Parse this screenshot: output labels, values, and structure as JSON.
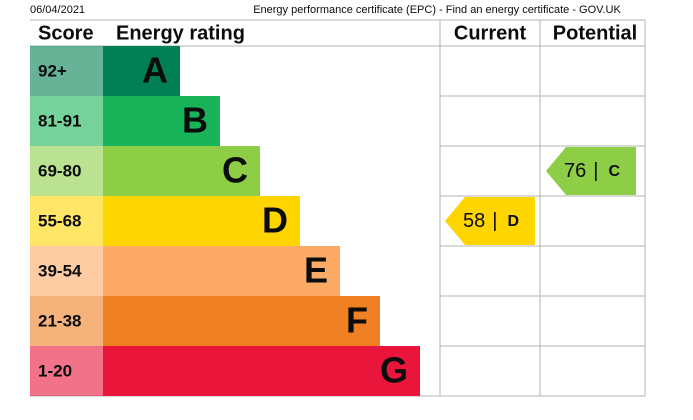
{
  "header": {
    "date": "06/04/2021",
    "title": "Energy performance certificate (EPC) - Find an energy certificate - GOV.UK"
  },
  "table": {
    "columns": [
      "Score",
      "Energy rating",
      "Current",
      "Potential"
    ],
    "bands": [
      {
        "score": "92+",
        "letter": "A",
        "color": "#008054"
      },
      {
        "score": "81-91",
        "letter": "B",
        "color": "#19b459"
      },
      {
        "score": "69-80",
        "letter": "C",
        "color": "#8dce46"
      },
      {
        "score": "55-68",
        "letter": "D",
        "color": "#ffd500"
      },
      {
        "score": "39-54",
        "letter": "E",
        "color": "#fcaa65"
      },
      {
        "score": "21-38",
        "letter": "F",
        "color": "#ef8023"
      },
      {
        "score": "1-20",
        "letter": "G",
        "color": "#e9153b"
      }
    ],
    "current": {
      "value": "58",
      "separator": "|",
      "band": "D"
    },
    "potential": {
      "value": "76",
      "separator": "|",
      "band": "C"
    }
  }
}
